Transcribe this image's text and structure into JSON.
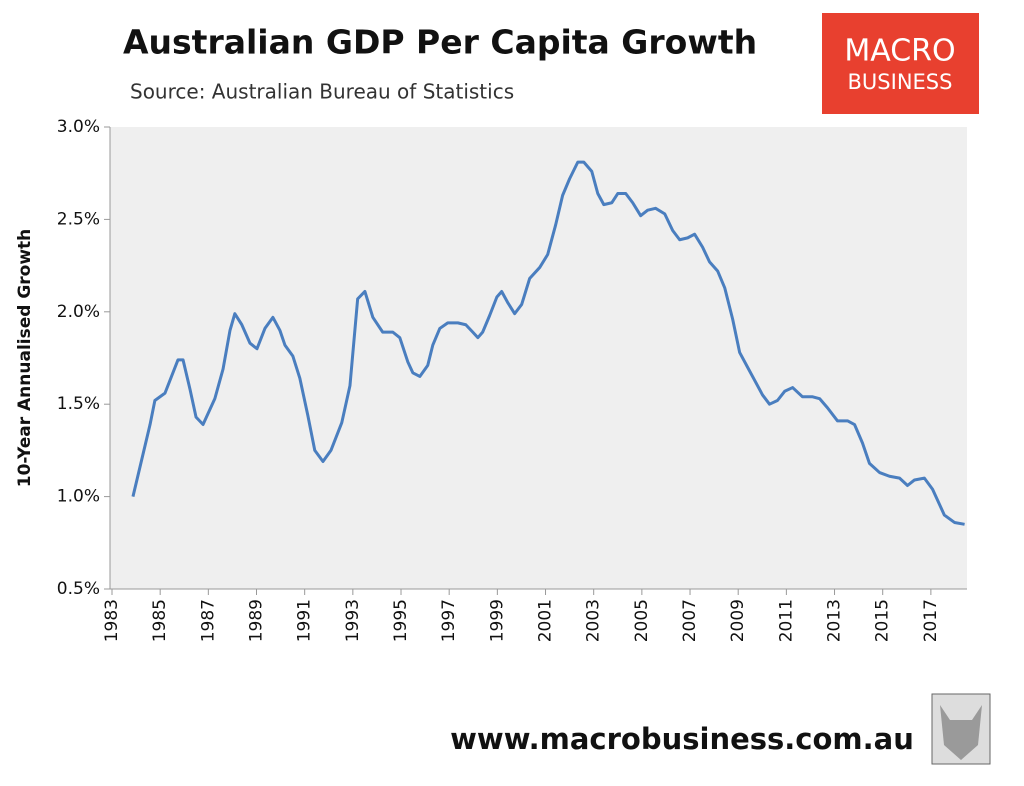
{
  "chart_data": {
    "type": "line",
    "title": "Australian GDP Per Capita Growth",
    "subtitle": "Source: Australian Bureau of Statistics",
    "y_label": "10-Year Annualised Growth",
    "x": [
      1983.87,
      1984.58,
      1984.78,
      1985.2,
      1985.74,
      1985.95,
      1986.24,
      1986.49,
      1986.78,
      1987.27,
      1987.61,
      1987.9,
      1988.1,
      1988.39,
      1988.73,
      1989.02,
      1989.35,
      1989.68,
      1989.97,
      1990.18,
      1990.51,
      1990.8,
      1991.13,
      1991.42,
      1991.76,
      1992.09,
      1992.54,
      1992.88,
      1993.2,
      1993.5,
      1993.83,
      1994.24,
      1994.66,
      1994.95,
      1995.28,
      1995.49,
      1995.78,
      1996.11,
      1996.32,
      1996.61,
      1996.94,
      1997.36,
      1997.69,
      1997.98,
      1998.19,
      1998.39,
      1998.68,
      1998.98,
      1999.18,
      1999.43,
      1999.72,
      2000.01,
      2000.34,
      2000.76,
      2001.09,
      2001.42,
      2001.71,
      2002.0,
      2002.34,
      2002.59,
      2002.92,
      2003.17,
      2003.42,
      2003.75,
      2004.0,
      2004.33,
      2004.62,
      2004.95,
      2005.24,
      2005.57,
      2005.95,
      2006.28,
      2006.57,
      2006.9,
      2007.19,
      2007.52,
      2007.81,
      2008.15,
      2008.44,
      2008.77,
      2009.06,
      2009.39,
      2009.68,
      2010.01,
      2010.3,
      2010.63,
      2010.93,
      2011.26,
      2011.67,
      2012.09,
      2012.38,
      2012.71,
      2013.12,
      2013.54,
      2013.83,
      2014.16,
      2014.45,
      2014.87,
      2015.28,
      2015.7,
      2016.03,
      2016.32,
      2016.73,
      2017.07,
      2017.56,
      2017.98,
      2018.4
    ],
    "series": [
      {
        "name": "10-Year Annualised Growth",
        "color": "#4a7ebf",
        "values": [
          1.0,
          1.39,
          1.52,
          1.56,
          1.74,
          1.74,
          1.58,
          1.43,
          1.39,
          1.53,
          1.69,
          1.9,
          1.99,
          1.93,
          1.83,
          1.8,
          1.91,
          1.97,
          1.9,
          1.82,
          1.76,
          1.64,
          1.44,
          1.25,
          1.19,
          1.25,
          1.4,
          1.6,
          2.07,
          2.11,
          1.97,
          1.89,
          1.89,
          1.86,
          1.73,
          1.67,
          1.65,
          1.71,
          1.82,
          1.91,
          1.94,
          1.94,
          1.93,
          1.89,
          1.86,
          1.89,
          1.98,
          2.08,
          2.11,
          2.05,
          1.99,
          2.04,
          2.18,
          2.24,
          2.31,
          2.47,
          2.63,
          2.72,
          2.81,
          2.81,
          2.76,
          2.64,
          2.58,
          2.59,
          2.64,
          2.64,
          2.59,
          2.52,
          2.55,
          2.56,
          2.53,
          2.44,
          2.39,
          2.4,
          2.42,
          2.35,
          2.27,
          2.22,
          2.13,
          1.96,
          1.78,
          1.7,
          1.63,
          1.55,
          1.5,
          1.52,
          1.57,
          1.59,
          1.54,
          1.54,
          1.53,
          1.48,
          1.41,
          1.41,
          1.39,
          1.29,
          1.18,
          1.13,
          1.11,
          1.1,
          1.06,
          1.09,
          1.1,
          1.04,
          0.9,
          0.86,
          0.85
        ]
      }
    ],
    "xlim": [
      1983,
      2018.5
    ],
    "xticks": [
      1983,
      1985,
      1987,
      1989,
      1991,
      1993,
      1995,
      1997,
      1999,
      2001,
      2003,
      2005,
      2007,
      2009,
      2011,
      2013,
      2015,
      2017
    ],
    "ylim": [
      0.5,
      3.0
    ],
    "yticks": [
      {
        "value": 0.5,
        "label": "0.5%"
      },
      {
        "value": 1.0,
        "label": "1.0%"
      },
      {
        "value": 1.5,
        "label": "1.5%"
      },
      {
        "value": 2.0,
        "label": "2.0%"
      },
      {
        "value": 2.5,
        "label": "2.5%"
      },
      {
        "value": 3.0,
        "label": "3.0%"
      }
    ],
    "logo": [
      "MACRO",
      "BUSINESS"
    ],
    "footer": "www.macrobusiness.com.au"
  }
}
